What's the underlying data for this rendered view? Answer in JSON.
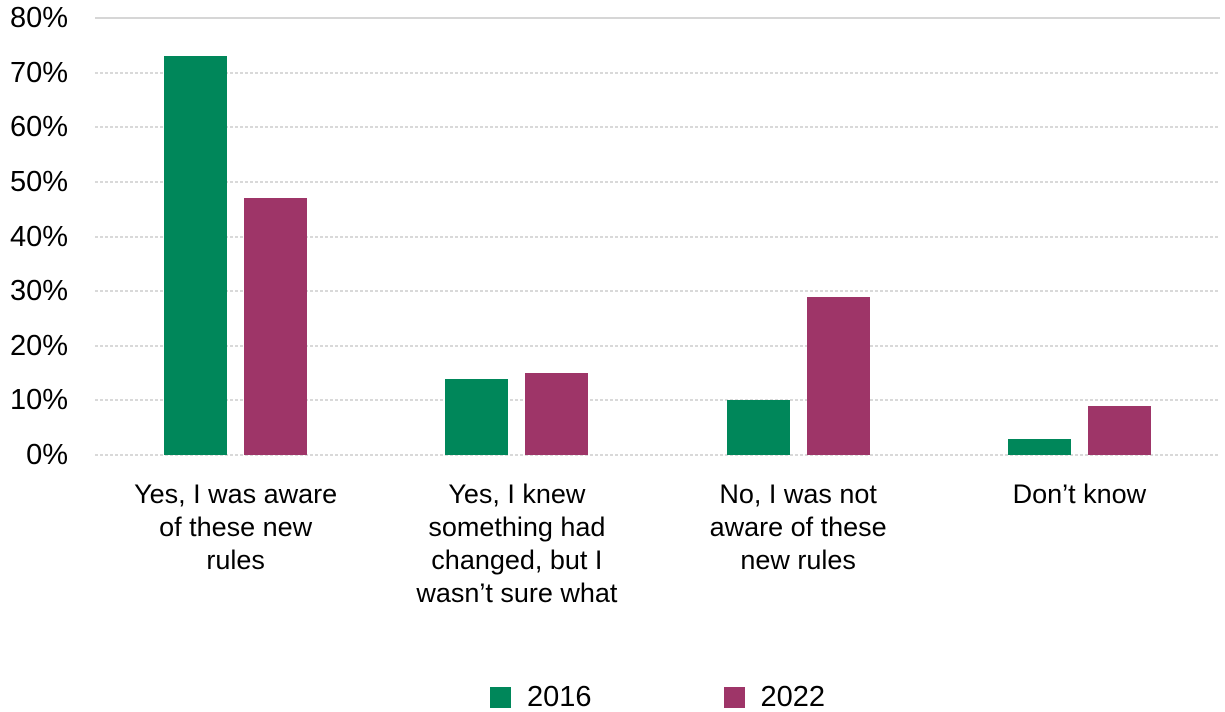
{
  "chart_data": {
    "type": "bar",
    "title": "",
    "xlabel": "",
    "ylabel": "",
    "categories": [
      "Yes, I was aware of these new rules",
      "Yes, I knew something had changed, but I wasn’t sure what",
      "No, I was not aware of these new rules",
      "Don’t know"
    ],
    "category_line_breaks": [
      [
        "Yes, I was aware",
        "of these new",
        "rules"
      ],
      [
        "Yes, I knew",
        "something had",
        "changed, but I",
        "wasn’t sure what"
      ],
      [
        "No, I was not",
        "aware of these",
        "new rules"
      ],
      [
        "Don’t know"
      ]
    ],
    "series": [
      {
        "name": "2016",
        "color": "#00875A",
        "values": [
          73,
          14,
          10,
          3
        ]
      },
      {
        "name": "2022",
        "color": "#9E3568",
        "values": [
          47,
          15,
          29,
          9
        ]
      }
    ],
    "ylim": [
      0,
      80
    ],
    "ytick_step": 10,
    "ytick_labels": [
      "0%",
      "10%",
      "20%",
      "30%",
      "40%",
      "50%",
      "60%",
      "70%",
      "80%"
    ],
    "grid": true,
    "gridline_style": "dotted",
    "legend_position": "bottom",
    "colors": {
      "gridline": "#D9D9D9",
      "text": "#000000",
      "background": "#FFFFFF"
    }
  }
}
